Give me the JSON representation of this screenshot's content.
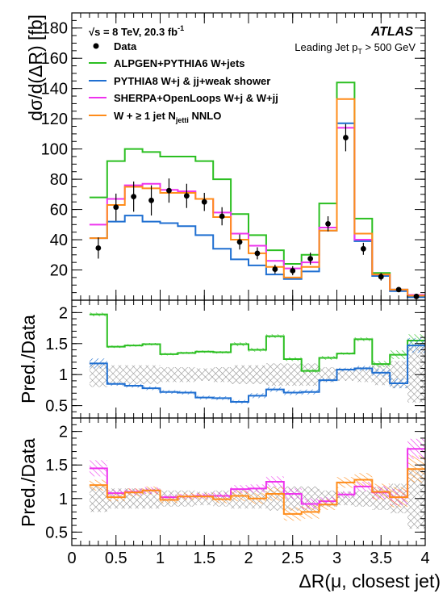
{
  "chart_data": {
    "type": "step",
    "x_edges": [
      0.2,
      0.4,
      0.6,
      0.8,
      1.0,
      1.2,
      1.4,
      1.6,
      1.8,
      2.0,
      2.2,
      2.4,
      2.6,
      2.8,
      3.0,
      3.2,
      3.4,
      3.6,
      3.8,
      4.0
    ],
    "x_ticks": [
      0,
      0.5,
      1,
      1.5,
      2,
      2.5,
      3,
      3.5,
      4
    ],
    "x_tick_labels": [
      "0",
      "0.5",
      "1",
      "1.5",
      "2",
      "2.5",
      "3",
      "3.5",
      "4"
    ],
    "xlabel": "ΔR(μ, closest jet)",
    "xlim": [
      0,
      4
    ],
    "experiment": "ATLAS",
    "energy_label": "√s = 8 TeV, 20.3 fb",
    "energy_sup": "-1",
    "selection_label": "Leading Jet p",
    "selection_sub": "T",
    "selection_tail": " > 500 GeV",
    "main": {
      "ylabel": "dσ/d(ΔR) [fb]",
      "ylim": [
        0,
        190
      ],
      "y_ticks": [
        20,
        40,
        60,
        80,
        100,
        120,
        140,
        160,
        180
      ],
      "y_tick_labels": [
        "20",
        "40",
        "60",
        "80",
        "100",
        "120",
        "140",
        "160",
        "180"
      ],
      "data": {
        "name": "Data",
        "x": [
          0.3,
          0.5,
          0.7,
          0.9,
          1.1,
          1.3,
          1.5,
          1.7,
          1.9,
          2.1,
          2.3,
          2.5,
          2.7,
          2.9,
          3.1,
          3.3,
          3.5,
          3.7,
          3.9
        ],
        "y": [
          34.5,
          61.5,
          68.5,
          66,
          72.5,
          69,
          65,
          55.5,
          38.5,
          31,
          20.5,
          19.5,
          27.5,
          50.5,
          107.5,
          34,
          15.5,
          7,
          2.5
        ],
        "err": [
          7,
          9,
          10,
          10,
          8,
          8,
          6,
          6,
          5,
          4,
          3,
          3,
          4,
          5,
          9,
          4,
          2.5,
          1.5,
          1
        ]
      },
      "series": [
        {
          "name": "ALPGEN+PYTHIA6 W+jets",
          "color": "#2bbf21",
          "values": [
            68,
            92,
            100,
            98,
            95,
            95,
            92,
            80,
            57,
            43,
            33,
            24,
            30,
            64,
            144,
            54,
            18,
            7,
            3
          ]
        },
        {
          "name": "PYTHIA8 W+j & jj+weak shower",
          "color": "#1f6fd1",
          "values": [
            41,
            52,
            56,
            52,
            51,
            49,
            43,
            34,
            27,
            23,
            17,
            14,
            19,
            46,
            117,
            39,
            16,
            6,
            2
          ]
        },
        {
          "name": "SHERPA+OpenLoops W+j & W+jj",
          "color": "#ee33ee",
          "values": [
            50,
            67,
            76,
            77,
            73,
            72,
            67,
            58,
            44,
            36,
            26,
            21,
            25,
            48,
            114,
            40,
            17,
            7,
            3.5
          ]
        },
        {
          "name": "W + ≥ 1 jet N_jetti NNLO",
          "color": "#ff8c1a",
          "values": [
            41,
            63,
            75,
            74,
            71,
            71,
            67,
            55,
            40,
            31,
            22,
            15,
            22,
            46,
            133,
            44,
            17,
            7,
            3
          ]
        }
      ]
    },
    "ratio1": {
      "ylabel": "Pred./Data",
      "ylim": [
        0.3,
        2.2
      ],
      "y_ticks": [
        0.5,
        1,
        1.5,
        2
      ],
      "y_tick_labels": [
        "0.5",
        "1",
        "1.5",
        "2"
      ],
      "data_unc": [
        0.2,
        0.15,
        0.15,
        0.15,
        0.12,
        0.12,
        0.1,
        0.12,
        0.15,
        0.15,
        0.18,
        0.18,
        0.18,
        0.12,
        0.1,
        0.12,
        0.17,
        0.22,
        0.45
      ],
      "series": [
        {
          "name": "ALPGEN+PYTHIA6 W+jets",
          "color": "#2bbf21",
          "values": [
            1.97,
            1.45,
            1.47,
            1.49,
            1.33,
            1.35,
            1.37,
            1.36,
            1.49,
            1.4,
            1.62,
            1.25,
            1.06,
            1.27,
            1.34,
            1.57,
            1.17,
            1.32,
            1.55
          ],
          "unc": [
            0.03,
            0.02,
            0.02,
            0.02,
            0.02,
            0.02,
            0.02,
            0.02,
            0.03,
            0.03,
            0.03,
            0.03,
            0.03,
            0.03,
            0.02,
            0.03,
            0.05,
            0.07,
            0.1
          ]
        },
        {
          "name": "PYTHIA8 W+j & jj+weak shower",
          "color": "#1f6fd1",
          "values": [
            1.18,
            0.85,
            0.82,
            0.78,
            0.72,
            0.71,
            0.63,
            0.62,
            0.56,
            0.66,
            0.76,
            0.71,
            0.72,
            0.91,
            1.08,
            1.1,
            1.03,
            0.86,
            1.47
          ],
          "unc": [
            0.08,
            0.03,
            0.03,
            0.03,
            0.03,
            0.03,
            0.03,
            0.03,
            0.03,
            0.04,
            0.04,
            0.04,
            0.04,
            0.03,
            0.03,
            0.04,
            0.06,
            0.08,
            0.12
          ]
        }
      ]
    },
    "ratio2": {
      "ylabel": "Pred./Data",
      "ylim": [
        0.3,
        2.2
      ],
      "y_ticks": [
        0.5,
        1,
        1.5,
        2
      ],
      "y_tick_labels": [
        "0.5",
        "1",
        "1.5",
        "2"
      ],
      "data_unc": [
        0.2,
        0.15,
        0.15,
        0.15,
        0.12,
        0.12,
        0.1,
        0.12,
        0.15,
        0.15,
        0.18,
        0.18,
        0.18,
        0.12,
        0.1,
        0.12,
        0.17,
        0.22,
        0.45
      ],
      "series": [
        {
          "name": "SHERPA+OpenLoops W+j & W+jj",
          "color": "#ee33ee",
          "values": [
            1.45,
            1.08,
            1.1,
            1.12,
            1.02,
            1.03,
            1.04,
            1.04,
            1.14,
            1.15,
            1.25,
            1.07,
            0.92,
            0.96,
            1.06,
            1.18,
            1.09,
            1.02,
            1.74
          ],
          "unc": [
            0.12,
            0.05,
            0.05,
            0.05,
            0.04,
            0.04,
            0.04,
            0.05,
            0.06,
            0.06,
            0.08,
            0.08,
            0.08,
            0.06,
            0.05,
            0.07,
            0.1,
            0.12,
            0.15
          ]
        },
        {
          "name": "W + ≥ 1 jet N_jetti NNLO",
          "color": "#ff8c1a",
          "values": [
            1.2,
            1.02,
            1.09,
            1.12,
            0.98,
            1.03,
            1.03,
            0.99,
            1.04,
            1.0,
            1.07,
            0.77,
            0.8,
            0.91,
            1.24,
            1.28,
            1.1,
            1.02,
            1.44
          ],
          "unc": [
            0.08,
            0.06,
            0.06,
            0.06,
            0.05,
            0.05,
            0.05,
            0.06,
            0.08,
            0.08,
            0.1,
            0.1,
            0.1,
            0.08,
            0.08,
            0.1,
            0.12,
            0.15,
            0.2
          ]
        }
      ]
    }
  }
}
